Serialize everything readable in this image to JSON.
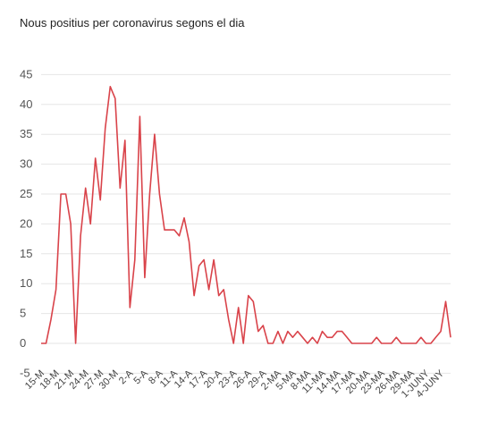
{
  "title": "Nous positius per coronavirus segons el dia",
  "chart_data": {
    "type": "line",
    "title": "Nous positius per coronavirus segons el dia",
    "xlabel": "",
    "ylabel": "",
    "ylim": [
      -5,
      45
    ],
    "grid": true,
    "y_ticks": [
      -5,
      0,
      5,
      10,
      15,
      20,
      25,
      30,
      35,
      40,
      45
    ],
    "x_tick_labels": [
      "15-M",
      "18-M",
      "21-M",
      "24-M",
      "27-M",
      "30-M",
      "2-A",
      "5-A",
      "8-A",
      "11-A",
      "14-A",
      "17-A",
      "20-A",
      "23-A",
      "26-A",
      "29-A",
      "2-MA",
      "5-MA",
      "8-MA",
      "11-MA",
      "14-MA",
      "17-MA",
      "20-MA",
      "23-MA",
      "26-MA",
      "29-MA",
      "1-JUNY",
      "4-JUNY"
    ],
    "series": [
      {
        "color": "#d9434a",
        "values": [
          0,
          0,
          4,
          9,
          25,
          25,
          20,
          0,
          18,
          26,
          20,
          31,
          24,
          36,
          43,
          41,
          26,
          34,
          6,
          14,
          38,
          11,
          25,
          35,
          25,
          19,
          19,
          19,
          18,
          21,
          17,
          8,
          13,
          14,
          9,
          14,
          8,
          9,
          4,
          0,
          6,
          0,
          8,
          7,
          2,
          3,
          0,
          0,
          2,
          0,
          2,
          1,
          2,
          1,
          0,
          1,
          0,
          2,
          1,
          1,
          2,
          2,
          1,
          0,
          0,
          0,
          0,
          0,
          1,
          0,
          0,
          0,
          1,
          0,
          0,
          0,
          0,
          1,
          0,
          0,
          1,
          2,
          7,
          1
        ]
      }
    ]
  }
}
